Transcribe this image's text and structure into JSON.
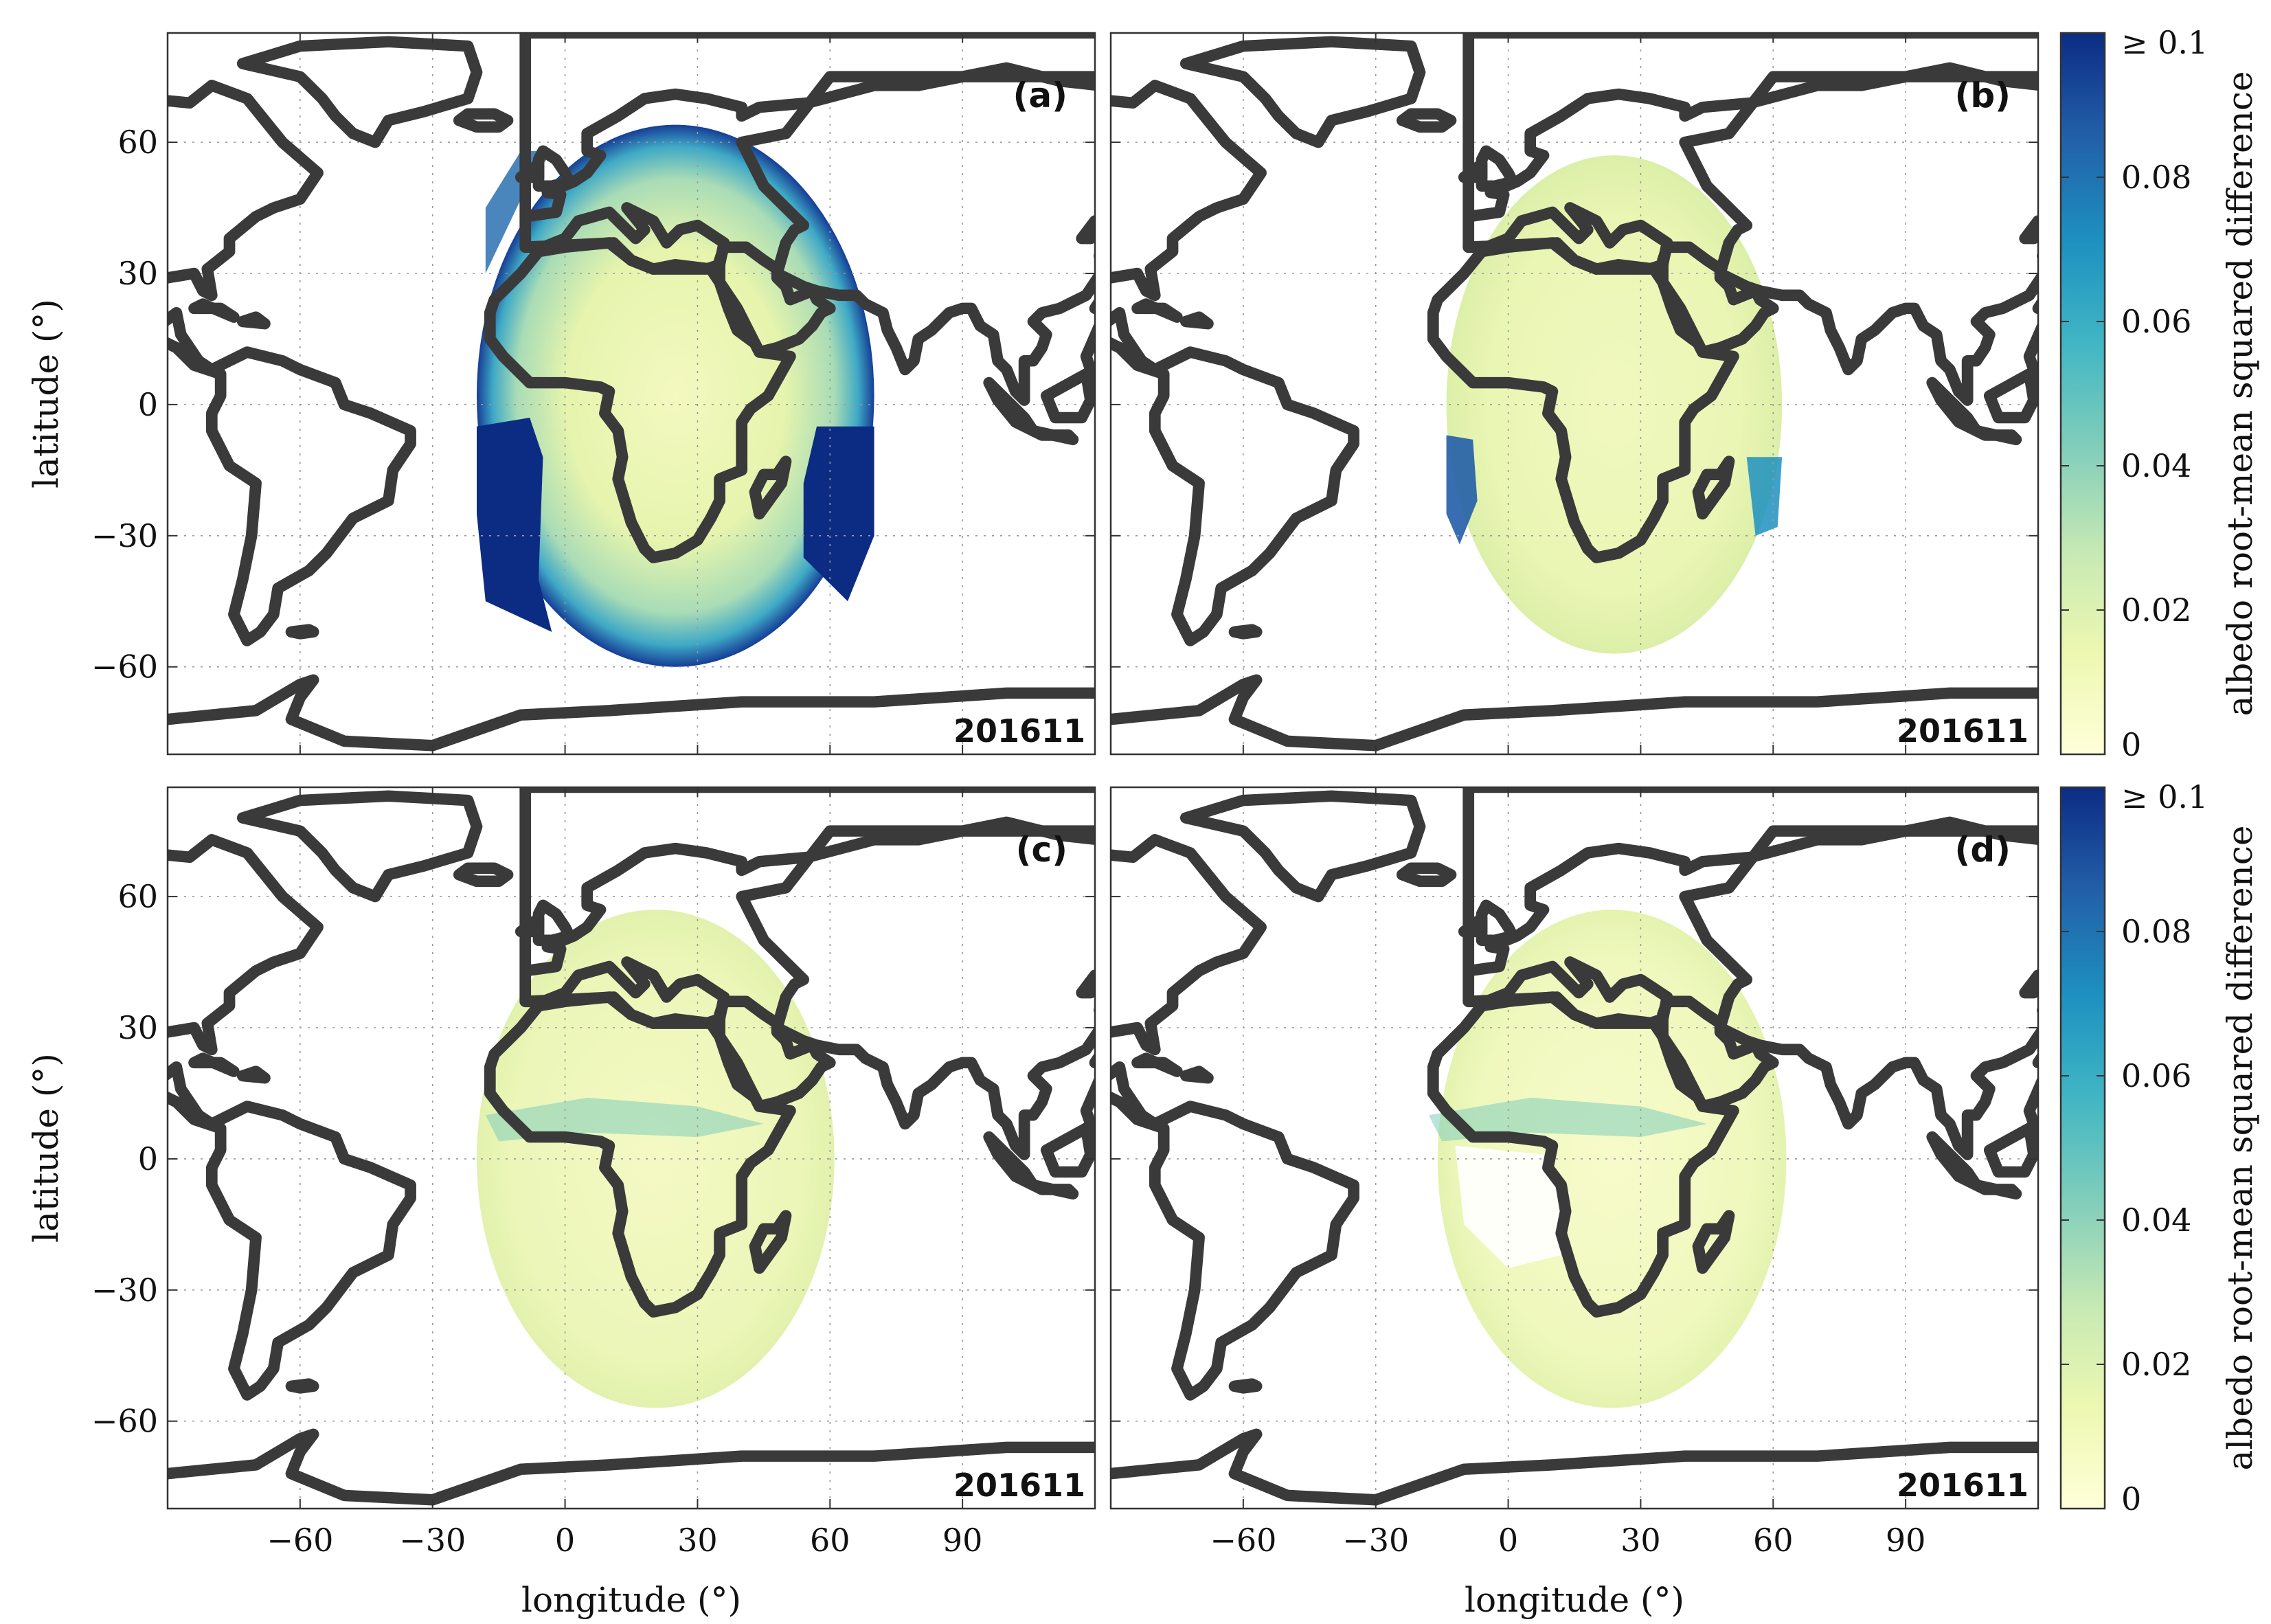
{
  "axes": {
    "xlabel": "longitude (°)",
    "ylabel": "latitude (°)",
    "xticks": [
      "−60",
      "−30",
      "0",
      "30",
      "60",
      "90"
    ],
    "xtick_values": [
      -60,
      -30,
      0,
      30,
      60,
      90
    ],
    "yticks": [
      "60",
      "30",
      "0",
      "−30",
      "−60"
    ],
    "ytick_values": [
      60,
      30,
      0,
      -30,
      -60
    ]
  },
  "colorbar": {
    "label": "albedo root-mean squared difference",
    "ticks": [
      "≥ 0.1",
      "0.08",
      "0.06",
      "0.04",
      "0.02",
      "0"
    ],
    "tick_values": [
      0.1,
      0.08,
      0.06,
      0.04,
      0.02,
      0
    ],
    "colors": [
      "#ffffd9",
      "#edf8b1",
      "#c7e9b4",
      "#7fcdbb",
      "#41b6c4",
      "#1d91c0",
      "#225ea8",
      "#0c2c84"
    ]
  },
  "panels": [
    {
      "tag": "(a)",
      "date": "201611",
      "disk": {
        "lon_min": -20,
        "lon_max": 70,
        "lat_min": -60,
        "lat_max": 64
      }
    },
    {
      "tag": "(b)",
      "date": "201611",
      "disk": {
        "lon_min": -14,
        "lon_max": 62,
        "lat_min": -57,
        "lat_max": 57
      }
    },
    {
      "tag": "(c)",
      "date": "201611",
      "disk": {
        "lon_min": -20,
        "lon_max": 61,
        "lat_min": -57,
        "lat_max": 57
      }
    },
    {
      "tag": "(d)",
      "date": "201611",
      "disk": {
        "lon_min": -16,
        "lon_max": 63,
        "lat_min": -57,
        "lat_max": 57
      }
    }
  ]
}
